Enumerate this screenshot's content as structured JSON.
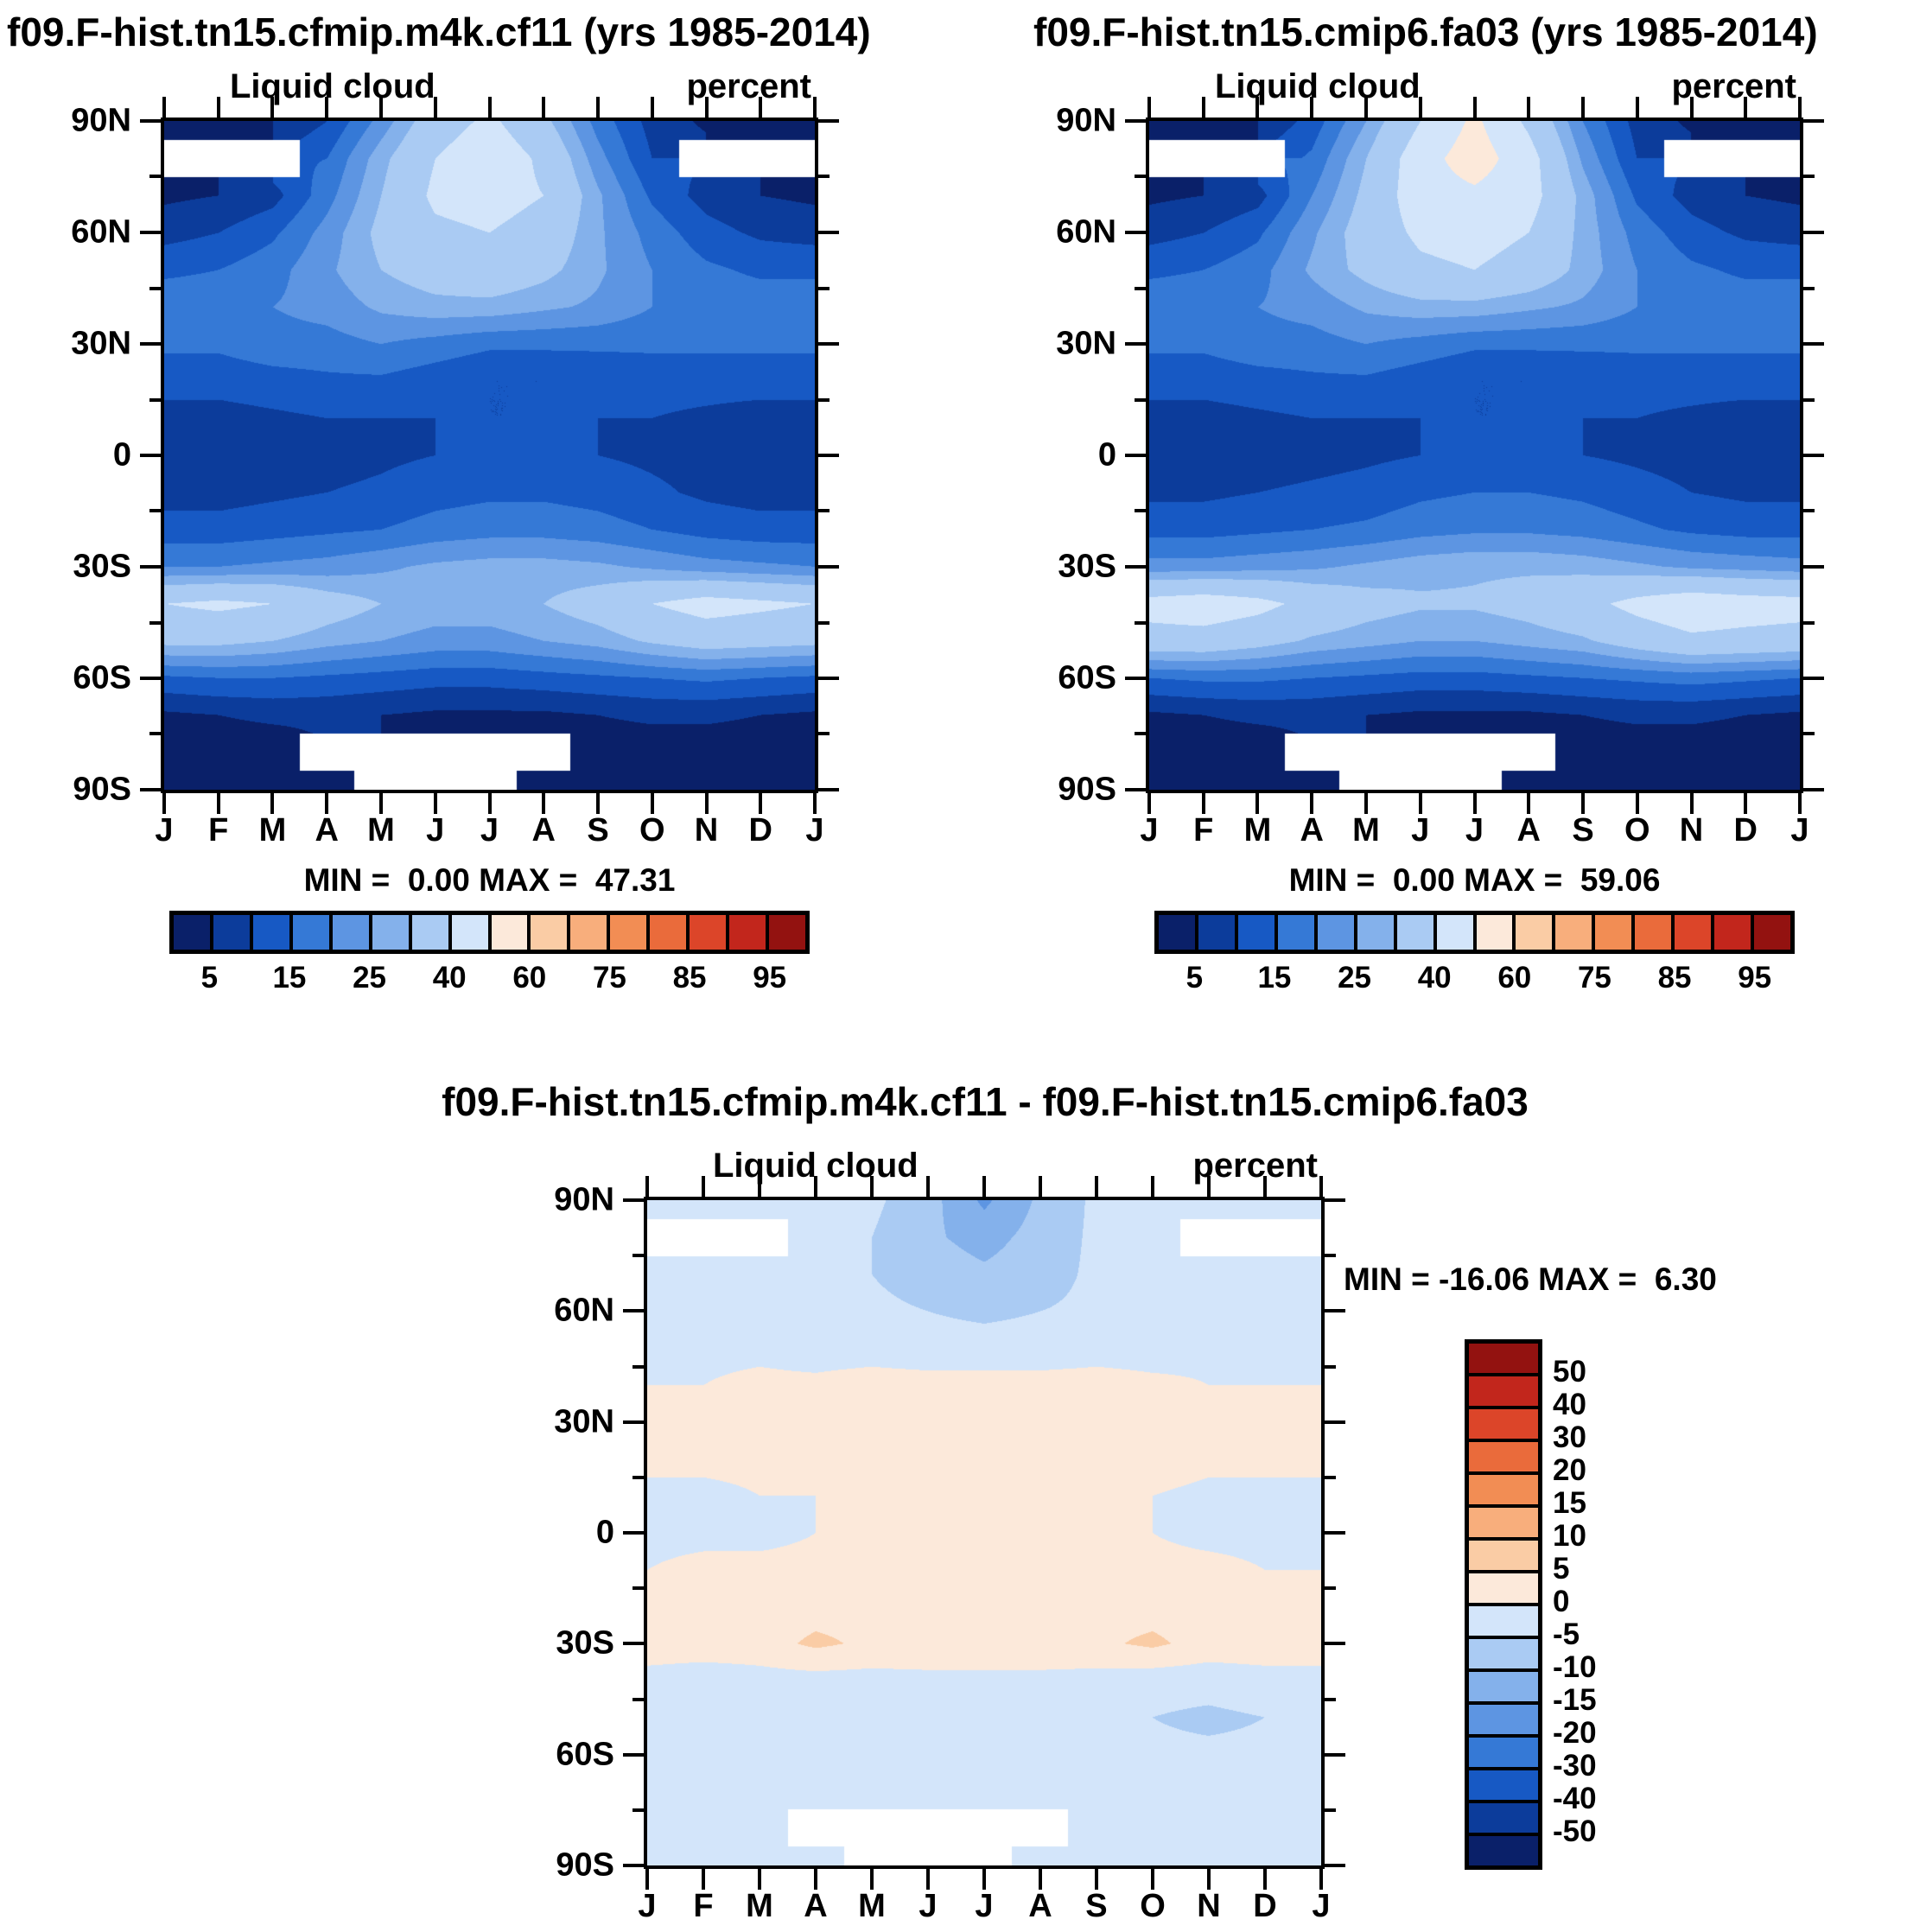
{
  "panels": [
    {
      "header": "f09.F-hist.tn15.cfmip.m4k.cf11 (yrs 1985-2014)",
      "field_title": "Liquid cloud",
      "units": "percent",
      "minmax": "MIN =  0.00 MAX =  47.31"
    },
    {
      "header": "f09.F-hist.tn15.cmip6.fa03 (yrs 1985-2014)",
      "field_title": "Liquid cloud",
      "units": "percent",
      "minmax": "MIN =  0.00 MAX =  59.06"
    },
    {
      "header": "f09.F-hist.tn15.cfmip.m4k.cf11 - f09.F-hist.tn15.cmip6.fa03",
      "field_title": "Liquid cloud",
      "units": "percent",
      "minmax": "MIN = -16.06 MAX =  6.30"
    }
  ],
  "axes": {
    "lat_labels": [
      "90N",
      "60N",
      "30N",
      "0",
      "30S",
      "60S",
      "90S"
    ],
    "month_labels": [
      "J",
      "F",
      "M",
      "A",
      "M",
      "J",
      "J",
      "A",
      "S",
      "O",
      "N",
      "D",
      "J"
    ]
  },
  "palette": {
    "colors16": [
      "#0A2069",
      "#0C3C9B",
      "#1759C4",
      "#3579D6",
      "#5D95E2",
      "#84B1EB",
      "#AACBF3",
      "#D3E5FA",
      "#FCE9DA",
      "#FACCA5",
      "#F8AE7C",
      "#F28D54",
      "#EA6B3B",
      "#DC4529",
      "#C2261C",
      "#931210"
    ],
    "missing_color": "#FFFFFF",
    "bounds_abs": [
      5,
      10,
      15,
      20,
      25,
      30,
      40,
      50,
      60,
      70,
      75,
      80,
      85,
      90,
      95
    ],
    "labels_abs": [
      "5",
      "15",
      "25",
      "40",
      "60",
      "75",
      "85",
      "95"
    ],
    "bounds_diff": [
      -50,
      -40,
      -30,
      -20,
      -15,
      -10,
      -5,
      0,
      5,
      10,
      15,
      20,
      30,
      40,
      50
    ],
    "labels_diff": [
      "50",
      "40",
      "30",
      "20",
      "15",
      "10",
      "5",
      "0",
      "-5",
      "-10",
      "-15",
      "-20",
      "-30",
      "-40",
      "-50"
    ]
  },
  "chart_data": [
    {
      "type": "heatmap",
      "title": "f09.F-hist.tn15.cfmip.m4k.cf11 (yrs 1985-2014)",
      "field": "Liquid cloud",
      "units": "percent",
      "xlabel": "month",
      "ylabel": "latitude",
      "x": [
        "J",
        "F",
        "M",
        "A",
        "M",
        "J",
        "J",
        "A",
        "S",
        "O",
        "N",
        "D",
        "J"
      ],
      "lats": [
        90,
        80,
        70,
        60,
        50,
        40,
        30,
        20,
        10,
        0,
        -10,
        -20,
        -30,
        -40,
        -50,
        -60,
        -70,
        -80,
        -90
      ],
      "min": 0.0,
      "max": 47.31,
      "levels": [
        5,
        10,
        15,
        20,
        25,
        30,
        40,
        50,
        60,
        70,
        75,
        80,
        85,
        90,
        95
      ],
      "values": [
        [
          3,
          3,
          5,
          10,
          22,
          35,
          42,
          32,
          18,
          8,
          4,
          3,
          3
        ],
        [
          null,
          null,
          null,
          15,
          28,
          40,
          47,
          38,
          22,
          10,
          null,
          null,
          null
        ],
        [
          4,
          5,
          8,
          18,
          30,
          42,
          44,
          40,
          26,
          14,
          8,
          5,
          4
        ],
        [
          8,
          10,
          14,
          22,
          32,
          38,
          40,
          36,
          26,
          18,
          12,
          9,
          8
        ],
        [
          14,
          15,
          18,
          24,
          30,
          34,
          36,
          32,
          26,
          20,
          16,
          14,
          14
        ],
        [
          18,
          18,
          20,
          22,
          26,
          28,
          28,
          26,
          24,
          20,
          18,
          18,
          18
        ],
        [
          16,
          16,
          18,
          18,
          20,
          18,
          16,
          16,
          16,
          16,
          16,
          16,
          16
        ],
        [
          12,
          12,
          13,
          14,
          14,
          12,
          10,
          10,
          11,
          12,
          12,
          12,
          12
        ],
        [
          8,
          8,
          9,
          10,
          10,
          10,
          10,
          10,
          10,
          10,
          9,
          8,
          8
        ],
        [
          7,
          7,
          7,
          8,
          9,
          10,
          11,
          11,
          10,
          9,
          8,
          7,
          7
        ],
        [
          8,
          8,
          9,
          10,
          11,
          13,
          14,
          14,
          13,
          11,
          9,
          8,
          8
        ],
        [
          12,
          12,
          13,
          14,
          15,
          17,
          18,
          18,
          17,
          15,
          13,
          12,
          12
        ],
        [
          20,
          20,
          21,
          22,
          24,
          26,
          27,
          27,
          26,
          24,
          22,
          21,
          20
        ],
        [
          40,
          42,
          40,
          34,
          30,
          28,
          28,
          30,
          34,
          40,
          44,
          42,
          40
        ],
        [
          32,
          32,
          30,
          27,
          25,
          23,
          23,
          25,
          27,
          31,
          34,
          33,
          32
        ],
        [
          14,
          15,
          15,
          14,
          13,
          12,
          12,
          13,
          14,
          15,
          16,
          15,
          14
        ],
        [
          4,
          5,
          6,
          6,
          5,
          4,
          4,
          4,
          5,
          6,
          6,
          5,
          4
        ],
        [
          2,
          2,
          2,
          null,
          null,
          null,
          null,
          null,
          2,
          2,
          2,
          2,
          2
        ],
        [
          2,
          2,
          2,
          2,
          null,
          null,
          null,
          2,
          2,
          2,
          2,
          2,
          2
        ]
      ]
    },
    {
      "type": "heatmap",
      "title": "f09.F-hist.tn15.cmip6.fa03 (yrs 1985-2014)",
      "field": "Liquid cloud",
      "units": "percent",
      "xlabel": "month",
      "ylabel": "latitude",
      "x": [
        "J",
        "F",
        "M",
        "A",
        "M",
        "J",
        "J",
        "A",
        "S",
        "O",
        "N",
        "D",
        "J"
      ],
      "lats": [
        90,
        80,
        70,
        60,
        50,
        40,
        30,
        20,
        10,
        0,
        -10,
        -20,
        -30,
        -40,
        -50,
        -60,
        -70,
        -80,
        -90
      ],
      "min": 0.0,
      "max": 59.06,
      "levels": [
        5,
        10,
        15,
        20,
        25,
        30,
        40,
        50,
        60,
        70,
        75,
        80,
        85,
        90,
        95
      ],
      "values": [
        [
          3,
          3,
          5,
          12,
          25,
          40,
          52,
          38,
          20,
          8,
          4,
          3,
          3
        ],
        [
          null,
          null,
          null,
          16,
          30,
          46,
          55,
          44,
          24,
          10,
          null,
          null,
          null
        ],
        [
          4,
          5,
          8,
          20,
          32,
          46,
          48,
          44,
          28,
          14,
          8,
          5,
          4
        ],
        [
          8,
          10,
          14,
          24,
          34,
          42,
          44,
          40,
          28,
          18,
          12,
          9,
          8
        ],
        [
          14,
          15,
          18,
          26,
          32,
          38,
          40,
          36,
          28,
          20,
          16,
          14,
          14
        ],
        [
          18,
          18,
          20,
          22,
          26,
          28,
          28,
          26,
          24,
          20,
          18,
          18,
          18
        ],
        [
          16,
          16,
          18,
          18,
          20,
          18,
          16,
          16,
          16,
          16,
          16,
          16,
          16
        ],
        [
          12,
          12,
          13,
          14,
          14,
          12,
          10,
          10,
          11,
          12,
          12,
          12,
          12
        ],
        [
          8,
          8,
          9,
          10,
          10,
          10,
          10,
          10,
          10,
          10,
          9,
          8,
          8
        ],
        [
          7,
          7,
          7,
          8,
          9,
          10,
          12,
          12,
          10,
          9,
          8,
          7,
          7
        ],
        [
          9,
          9,
          10,
          11,
          12,
          14,
          15,
          15,
          14,
          12,
          10,
          9,
          9
        ],
        [
          13,
          13,
          14,
          15,
          16,
          18,
          19,
          19,
          18,
          16,
          14,
          13,
          13
        ],
        [
          22,
          22,
          23,
          24,
          26,
          28,
          29,
          29,
          28,
          26,
          24,
          23,
          22
        ],
        [
          44,
          46,
          43,
          37,
          33,
          31,
          31,
          33,
          37,
          43,
          47,
          45,
          44
        ],
        [
          36,
          36,
          33,
          29,
          27,
          25,
          25,
          27,
          29,
          34,
          38,
          37,
          36
        ],
        [
          15,
          16,
          16,
          15,
          14,
          13,
          13,
          14,
          15,
          16,
          17,
          16,
          15
        ],
        [
          4,
          5,
          6,
          6,
          5,
          4,
          4,
          4,
          5,
          6,
          6,
          5,
          4
        ],
        [
          2,
          2,
          2,
          null,
          null,
          null,
          null,
          null,
          2,
          2,
          2,
          2,
          2
        ],
        [
          2,
          2,
          2,
          2,
          null,
          null,
          null,
          2,
          2,
          2,
          2,
          2,
          2
        ]
      ]
    },
    {
      "type": "heatmap",
      "title": "f09.F-hist.tn15.cfmip.m4k.cf11 - f09.F-hist.tn15.cmip6.fa03",
      "field": "Liquid cloud",
      "units": "percent",
      "xlabel": "month",
      "ylabel": "latitude",
      "x": [
        "J",
        "F",
        "M",
        "A",
        "M",
        "J",
        "J",
        "A",
        "S",
        "O",
        "N",
        "D",
        "J"
      ],
      "lats": [
        90,
        80,
        70,
        60,
        50,
        40,
        30,
        20,
        10,
        0,
        -10,
        -20,
        -30,
        -40,
        -50,
        -60,
        -70,
        -80,
        -90
      ],
      "min": -16.06,
      "max": 6.3,
      "levels": [
        -50,
        -40,
        -30,
        -20,
        -15,
        -10,
        -5,
        0,
        5,
        10,
        15,
        20,
        30,
        40,
        50
      ],
      "values": [
        [
          -1,
          -1,
          -1,
          -2,
          -4,
          -8,
          -16,
          -9,
          -4,
          -2,
          -1,
          -1,
          -1
        ],
        [
          null,
          null,
          null,
          -3,
          -5,
          -9,
          -12,
          -8,
          -4,
          -2,
          null,
          null,
          null
        ],
        [
          -2,
          -2,
          -3,
          -3,
          -5,
          -7,
          -9,
          -7,
          -4,
          -3,
          -2,
          -2,
          -2
        ],
        [
          -2,
          -2,
          -2,
          -3,
          -4,
          -5,
          -6,
          -5,
          -4,
          -3,
          -2,
          -2,
          -2
        ],
        [
          -1,
          -1,
          -1,
          -2,
          -2,
          -3,
          -3,
          -3,
          -2,
          -2,
          -1,
          -1,
          -1
        ],
        [
          0,
          0,
          1,
          1,
          2,
          2,
          2,
          2,
          2,
          1,
          0,
          0,
          0
        ],
        [
          1,
          2,
          2,
          2,
          3,
          3,
          3,
          3,
          3,
          2,
          2,
          1,
          1
        ],
        [
          1,
          1,
          1,
          2,
          2,
          3,
          3,
          3,
          2,
          2,
          1,
          1,
          1
        ],
        [
          -1,
          -1,
          0,
          0,
          1,
          1,
          1,
          1,
          1,
          0,
          -1,
          -1,
          -1
        ],
        [
          -1,
          -1,
          -1,
          0,
          0,
          1,
          1,
          1,
          0,
          0,
          -1,
          -1,
          -1
        ],
        [
          0,
          1,
          1,
          1,
          2,
          2,
          3,
          3,
          2,
          1,
          1,
          0,
          0
        ],
        [
          2,
          2,
          2,
          3,
          3,
          4,
          4,
          4,
          3,
          3,
          2,
          2,
          2
        ],
        [
          3,
          3,
          3,
          6,
          4,
          5,
          5,
          5,
          4,
          6,
          3,
          3,
          3
        ],
        [
          -2,
          -3,
          -2,
          -2,
          -2,
          -2,
          -2,
          -2,
          -2,
          -3,
          -3,
          -2,
          -2
        ],
        [
          -4,
          -4,
          -5,
          -5,
          -4,
          -4,
          -4,
          -4,
          -4,
          -5,
          -6,
          -5,
          -4
        ],
        [
          -4,
          -4,
          -4,
          -4,
          -3,
          -3,
          -3,
          -3,
          -3,
          -4,
          -4,
          -4,
          -4
        ],
        [
          -2,
          -2,
          -2,
          -2,
          -1,
          -1,
          -1,
          -1,
          -1,
          -2,
          -2,
          -2,
          -2
        ],
        [
          -1,
          -1,
          -1,
          null,
          null,
          null,
          null,
          null,
          -1,
          -1,
          -1,
          -1,
          -1
        ],
        [
          -1,
          -1,
          -1,
          -1,
          null,
          null,
          null,
          -1,
          -1,
          -1,
          -1,
          -1,
          -1
        ]
      ]
    }
  ]
}
